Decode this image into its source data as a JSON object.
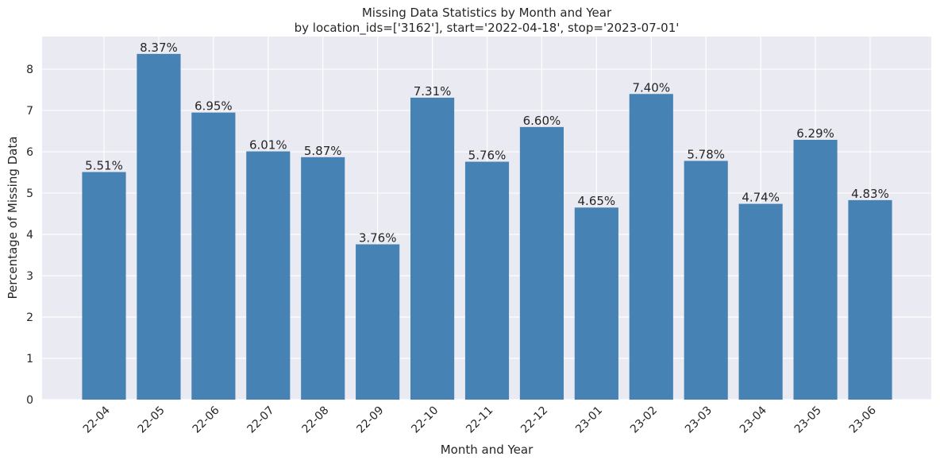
{
  "chart_data": {
    "type": "bar",
    "title": "Missing Data Statistics by Month and Year",
    "subtitle": "by location_ids=['3162'], start='2022-04-18', stop='2023-07-01'",
    "xlabel": "Month and Year",
    "ylabel": "Percentage of Missing Data",
    "categories": [
      "22-04",
      "22-05",
      "22-06",
      "22-07",
      "22-08",
      "22-09",
      "22-10",
      "22-11",
      "22-12",
      "23-01",
      "23-02",
      "23-03",
      "23-04",
      "23-05",
      "23-06"
    ],
    "values": [
      5.51,
      8.37,
      6.95,
      6.01,
      5.87,
      3.76,
      7.31,
      5.76,
      6.6,
      4.65,
      7.4,
      5.78,
      4.74,
      6.29,
      4.83
    ],
    "data_labels": [
      "5.51%",
      "8.37%",
      "6.95%",
      "6.01%",
      "5.87%",
      "3.76%",
      "7.31%",
      "5.76%",
      "6.60%",
      "4.65%",
      "7.40%",
      "5.78%",
      "4.74%",
      "6.29%",
      "4.83%"
    ],
    "yticks": [
      0,
      1,
      2,
      3,
      4,
      5,
      6,
      7,
      8
    ],
    "ylim": [
      0,
      8.79
    ],
    "grid": true,
    "legend": "none"
  },
  "colors": {
    "bar": "#4682B4",
    "plot_background": "#EAEAF2",
    "grid": "#FFFFFF",
    "text": "#262626"
  }
}
